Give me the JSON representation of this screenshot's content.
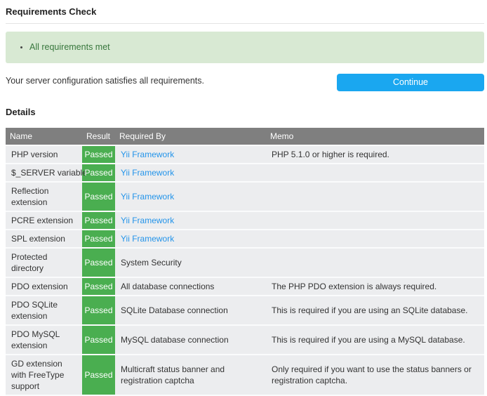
{
  "colors": {
    "accent_blue": "#1aa7f0",
    "link_blue": "#2394ea",
    "success_green": "#4aae50",
    "alert_background": "#d8e9d3",
    "alert_text": "#38773d",
    "table_header_gray": "#7f7f7f",
    "row_background": "#ecedef"
  },
  "page": {
    "title": "Requirements Check",
    "summary": "Your server configuration satisfies all requirements.",
    "continue_label": "Continue",
    "details_heading": "Details"
  },
  "alert": {
    "items": [
      "All requirements met"
    ]
  },
  "table": {
    "columns": [
      "Name",
      "Result",
      "Required By",
      "Memo"
    ],
    "rows": [
      {
        "name": "PHP version",
        "result": "Passed",
        "required_by": "Yii Framework",
        "required_by_is_link": true,
        "memo": "PHP 5.1.0 or higher is required."
      },
      {
        "name": "$_SERVER variable",
        "result": "Passed",
        "required_by": "Yii Framework",
        "required_by_is_link": true,
        "memo": ""
      },
      {
        "name": "Reflection extension",
        "result": "Passed",
        "required_by": "Yii Framework",
        "required_by_is_link": true,
        "memo": ""
      },
      {
        "name": "PCRE extension",
        "result": "Passed",
        "required_by": "Yii Framework",
        "required_by_is_link": true,
        "memo": ""
      },
      {
        "name": "SPL extension",
        "result": "Passed",
        "required_by": "Yii Framework",
        "required_by_is_link": true,
        "memo": ""
      },
      {
        "name": "Protected directory",
        "result": "Passed",
        "required_by": "System Security",
        "required_by_is_link": false,
        "memo": ""
      },
      {
        "name": "PDO extension",
        "result": "Passed",
        "required_by": "All database connections",
        "required_by_is_link": false,
        "memo": "The PHP PDO extension is always required."
      },
      {
        "name": "PDO SQLite extension",
        "result": "Passed",
        "required_by": "SQLite Database connection",
        "required_by_is_link": false,
        "memo": "This is required if you are using an SQLite database."
      },
      {
        "name": "PDO MySQL extension",
        "result": "Passed",
        "required_by": "MySQL database connection",
        "required_by_is_link": false,
        "memo": "This is required if you are using a MySQL database."
      },
      {
        "name": "GD extension with FreeType support",
        "result": "Passed",
        "required_by": "Multicraft status banner and registration captcha",
        "required_by_is_link": false,
        "memo": "Only required if you want to use the status banners or registration captcha."
      }
    ]
  }
}
